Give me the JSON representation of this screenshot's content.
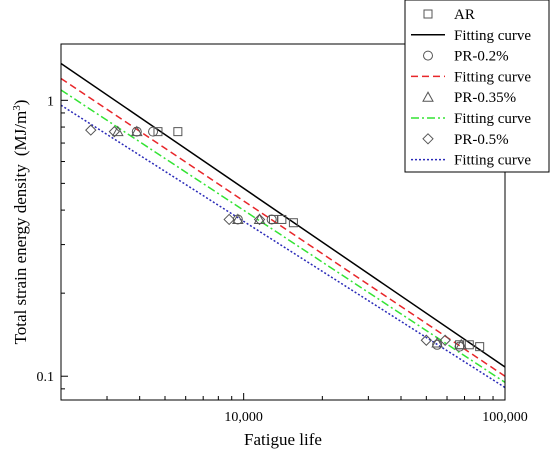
{
  "chart_data": {
    "type": "scatter",
    "xlabel": "Fatigue life",
    "ylabel": "Total strain energy density",
    "ylabel_unit": "(MJ/m",
    "ylabel_unit_sup": "3",
    "ylabel_unit_end": ")",
    "x_scale": "log",
    "y_scale": "log",
    "xlim": [
      2000,
      100000
    ],
    "ylim": [
      0.082,
      1.6
    ],
    "x_ticks": [
      {
        "value": 10000,
        "label": "10,000"
      },
      {
        "value": 100000,
        "label": "100,000"
      }
    ],
    "y_ticks": [
      {
        "value": 0.1,
        "label": "0.1"
      },
      {
        "value": 1,
        "label": "1"
      }
    ],
    "grid": false,
    "legend_position": "top-right",
    "series": [
      {
        "name": "AR",
        "marker": "square",
        "color": "#555555",
        "points": [
          [
            4700,
            0.77
          ],
          [
            5600,
            0.77
          ],
          [
            13000,
            0.37
          ],
          [
            14000,
            0.37
          ],
          [
            15500,
            0.36
          ],
          [
            67000,
            0.13
          ],
          [
            73000,
            0.13
          ],
          [
            80000,
            0.128
          ]
        ]
      },
      {
        "name": "Fitting curve",
        "kind": "line",
        "dash": "solid",
        "color": "#000000",
        "line": [
          [
            2000,
            1.36
          ],
          [
            100000,
            0.108
          ]
        ]
      },
      {
        "name": "PR-0.2%",
        "marker": "circle",
        "color": "#555555",
        "points": [
          [
            3900,
            0.77
          ],
          [
            4500,
            0.77
          ],
          [
            9500,
            0.37
          ],
          [
            12800,
            0.37
          ],
          [
            55000,
            0.13
          ],
          [
            67000,
            0.128
          ]
        ]
      },
      {
        "name": "Fitting curve",
        "kind": "line",
        "dash": "dashed",
        "color": "#e8262a",
        "line": [
          [
            2000,
            1.2
          ],
          [
            100000,
            0.1
          ]
        ]
      },
      {
        "name": "PR-0.35%",
        "marker": "triangle",
        "color": "#555555",
        "points": [
          [
            3300,
            0.77
          ],
          [
            3900,
            0.77
          ],
          [
            9500,
            0.37
          ],
          [
            11500,
            0.37
          ],
          [
            55000,
            0.132
          ],
          [
            68000,
            0.13
          ]
        ]
      },
      {
        "name": "Fitting curve",
        "kind": "line",
        "dash": "dashdot",
        "color": "#34e334",
        "line": [
          [
            2000,
            1.09
          ],
          [
            100000,
            0.095
          ]
        ]
      },
      {
        "name": "PR-0.5%",
        "marker": "diamond",
        "color": "#555555",
        "points": [
          [
            2600,
            0.78
          ],
          [
            3200,
            0.77
          ],
          [
            8800,
            0.37
          ],
          [
            11500,
            0.37
          ],
          [
            50000,
            0.135
          ],
          [
            59000,
            0.135
          ]
        ]
      },
      {
        "name": "Fitting curve",
        "kind": "line",
        "dash": "dotted",
        "color": "#2a2ab8",
        "line": [
          [
            2000,
            0.96
          ],
          [
            100000,
            0.091
          ]
        ]
      }
    ]
  }
}
